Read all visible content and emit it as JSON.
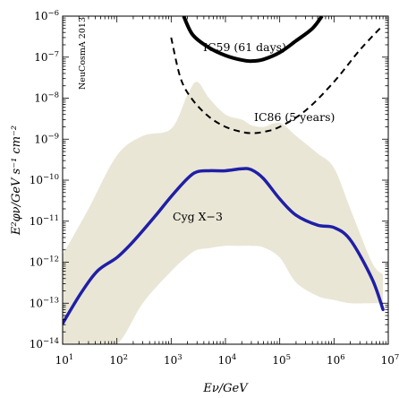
{
  "chart_data": {
    "type": "line",
    "title": "",
    "xlabel": "Eν/GeV",
    "ylabel": "E²φν/GeV s⁻¹ cm⁻²",
    "xscale": "log",
    "yscale": "log",
    "xlim": [
      10,
      10000000
    ],
    "ylim": [
      1e-14,
      1e-06
    ],
    "x_ticks": [
      {
        "base": "10",
        "exp": "1"
      },
      {
        "base": "10",
        "exp": "2"
      },
      {
        "base": "10",
        "exp": "3"
      },
      {
        "base": "10",
        "exp": "4"
      },
      {
        "base": "10",
        "exp": "5"
      },
      {
        "base": "10",
        "exp": "6"
      },
      {
        "base": "10",
        "exp": "7"
      }
    ],
    "y_ticks": [
      {
        "base": "10",
        "exp": "−14"
      },
      {
        "base": "10",
        "exp": "−13"
      },
      {
        "base": "10",
        "exp": "−12"
      },
      {
        "base": "10",
        "exp": "−11"
      },
      {
        "base": "10",
        "exp": "−10"
      },
      {
        "base": "10",
        "exp": "−9"
      },
      {
        "base": "10",
        "exp": "−8"
      },
      {
        "base": "10",
        "exp": "−7"
      },
      {
        "base": "10",
        "exp": "−6"
      }
    ],
    "watermark": "NeuCosmA 2013",
    "grid": false,
    "colors": {
      "band": "#eae6d6",
      "cygx3": "#1f1fa6",
      "ic59": "#000000",
      "ic86": "#000000"
    },
    "series": [
      {
        "name": "Cyg X−3",
        "style": "solid-thick",
        "x": [
          10,
          22,
          45,
          100,
          200,
          500,
          1000,
          2000,
          3000,
          5000,
          10000,
          20000,
          30000,
          50000,
          100000,
          200000,
          500000,
          1000000,
          2000000,
          5000000,
          8000000
        ],
        "y": [
          3.2e-14,
          1.8e-13,
          6.3e-13,
          1.3e-12,
          3.2e-12,
          1.3e-11,
          4e-11,
          1.1e-10,
          1.6e-10,
          1.7e-10,
          1.7e-10,
          1.9e-10,
          1.8e-10,
          1.1e-10,
          3.5e-11,
          1.4e-11,
          8e-12,
          7e-12,
          3.5e-12,
          4e-13,
          7e-14
        ]
      },
      {
        "name": "IC59 (61 days)",
        "style": "solid",
        "x": [
          1700,
          2500,
          5000,
          10000,
          20000,
          30000,
          50000,
          100000,
          200000,
          400000,
          600000
        ],
        "y": [
          1e-06,
          3.5e-07,
          1.7e-07,
          1.1e-07,
          8.5e-08,
          8e-08,
          8.8e-08,
          1.3e-07,
          2.5e-07,
          5e-07,
          1e-06
        ]
      },
      {
        "name": "IC86 (5 years)",
        "style": "dashed",
        "x": [
          1000,
          1500,
          2500,
          5000,
          10000,
          20000,
          30000,
          50000,
          100000,
          300000,
          1000000,
          3000000,
          8000000
        ],
        "y": [
          3e-07,
          3e-08,
          9e-09,
          3.5e-09,
          2e-09,
          1.5e-09,
          1.4e-09,
          1.5e-09,
          2e-09,
          5e-09,
          2.5e-08,
          1.5e-07,
          6e-07
        ]
      }
    ],
    "band": {
      "x": [
        10,
        30,
        100,
        300,
        1000,
        2000,
        3000,
        5000,
        10000,
        20000,
        30000,
        50000,
        100000,
        200000,
        500000,
        1000000,
        2000000,
        5000000,
        8000000
      ],
      "upper": [
        1.5e-12,
        2e-11,
        4e-10,
        1.2e-09,
        1.8e-09,
        1.2e-08,
        2.5e-08,
        1e-08,
        4e-09,
        3e-09,
        2.2e-09,
        2e-09,
        2.5e-09,
        1.2e-09,
        4.5e-10,
        2e-10,
        2e-11,
        1e-12,
        5e-13
      ],
      "lower": [
        1e-14,
        1e-14,
        1e-14,
        1e-13,
        6e-13,
        1.4e-12,
        2e-12,
        2.2e-12,
        2.5e-12,
        2.5e-12,
        2.5e-12,
        2.3e-12,
        1.3e-12,
        3.2e-13,
        1.5e-13,
        1.2e-13,
        1e-13,
        1e-13,
        1e-13
      ]
    },
    "annotations": {
      "cygx3": "Cyg X−3",
      "ic59": "IC59 (61 days)",
      "ic86": "IC86 (5 years)"
    }
  }
}
